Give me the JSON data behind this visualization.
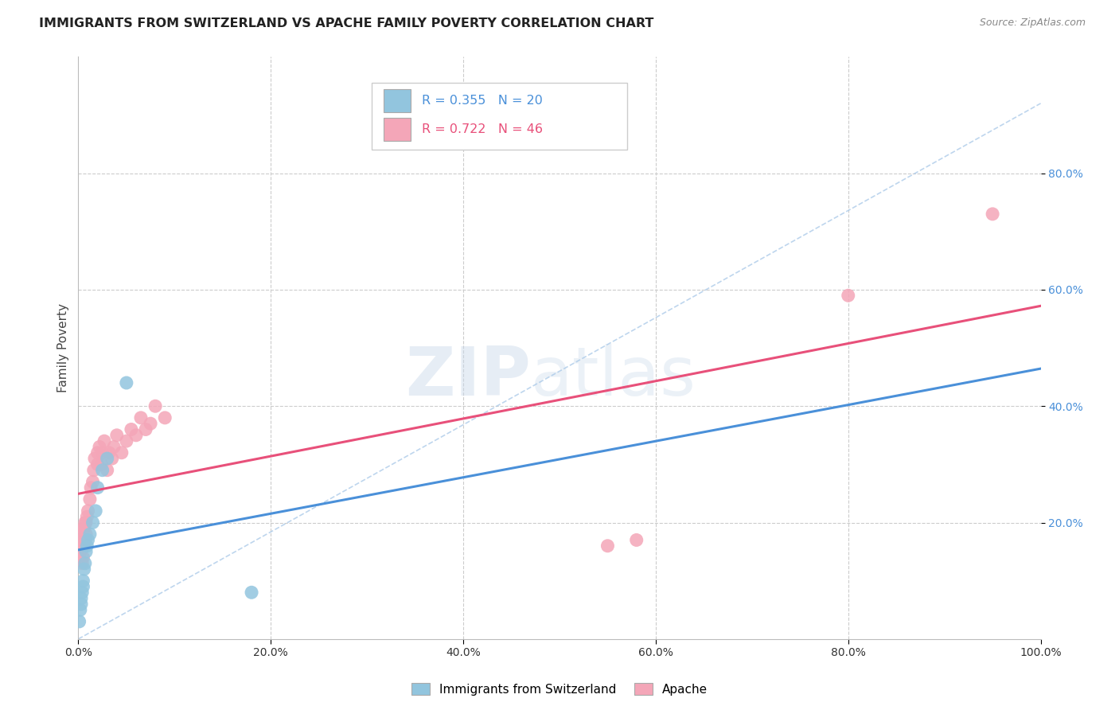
{
  "title": "IMMIGRANTS FROM SWITZERLAND VS APACHE FAMILY POVERTY CORRELATION CHART",
  "source": "Source: ZipAtlas.com",
  "ylabel": "Family Poverty",
  "xlim": [
    0,
    1.0
  ],
  "ylim": [
    0,
    1.0
  ],
  "swiss_color": "#92c5de",
  "apache_color": "#f4a6b8",
  "swiss_line_color": "#4a90d9",
  "apache_line_color": "#e8507a",
  "diag_line_color": "#a8c8e8",
  "swiss_R": 0.355,
  "swiss_N": 20,
  "apache_R": 0.722,
  "apache_N": 46,
  "watermark_zip": "ZIP",
  "watermark_atlas": "atlas",
  "background_color": "#ffffff",
  "grid_color": "#cccccc",
  "ytick_color": "#4a90d9",
  "xtick_color": "#333333",
  "swiss_x": [
    0.001,
    0.002,
    0.003,
    0.003,
    0.004,
    0.005,
    0.005,
    0.006,
    0.007,
    0.008,
    0.009,
    0.01,
    0.012,
    0.015,
    0.018,
    0.02,
    0.025,
    0.03,
    0.05,
    0.18
  ],
  "swiss_y": [
    0.03,
    0.05,
    0.06,
    0.07,
    0.08,
    0.09,
    0.1,
    0.12,
    0.13,
    0.15,
    0.16,
    0.17,
    0.18,
    0.2,
    0.22,
    0.26,
    0.29,
    0.31,
    0.44,
    0.08
  ],
  "apache_x": [
    0.001,
    0.002,
    0.003,
    0.003,
    0.004,
    0.004,
    0.005,
    0.005,
    0.005,
    0.006,
    0.006,
    0.007,
    0.007,
    0.008,
    0.008,
    0.009,
    0.01,
    0.012,
    0.013,
    0.015,
    0.016,
    0.017,
    0.02,
    0.02,
    0.022,
    0.024,
    0.025,
    0.027,
    0.03,
    0.032,
    0.035,
    0.037,
    0.04,
    0.045,
    0.05,
    0.055,
    0.06,
    0.065,
    0.07,
    0.075,
    0.08,
    0.09,
    0.55,
    0.58,
    0.8,
    0.95
  ],
  "apache_y": [
    0.14,
    0.15,
    0.16,
    0.17,
    0.13,
    0.18,
    0.14,
    0.17,
    0.19,
    0.16,
    0.19,
    0.17,
    0.2,
    0.18,
    0.2,
    0.21,
    0.22,
    0.24,
    0.26,
    0.27,
    0.29,
    0.31,
    0.3,
    0.32,
    0.33,
    0.3,
    0.32,
    0.34,
    0.29,
    0.32,
    0.31,
    0.33,
    0.35,
    0.32,
    0.34,
    0.36,
    0.35,
    0.38,
    0.36,
    0.37,
    0.4,
    0.38,
    0.16,
    0.17,
    0.59,
    0.73
  ]
}
